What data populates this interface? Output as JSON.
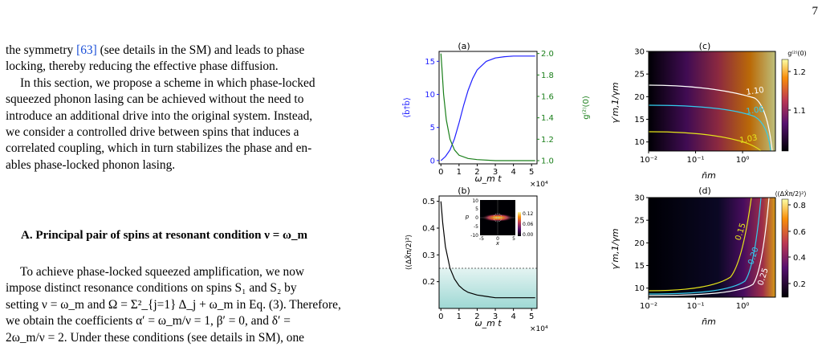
{
  "page_number": "7",
  "text": {
    "p1_l1": "the symmetry [63] (see details in the SM) and leads to phase",
    "p1_l2": "locking, thereby reducing the effective phase diffusion.",
    "p2_l1": "In this section, we propose a scheme in which phase-locked",
    "p2_l2": "squeezed phonon lasing can be achieved without the need to",
    "p2_l3": "introduce an additional drive into the original system. Instead,",
    "p2_l4": "we consider a controlled drive between spins that induces a",
    "p2_l5": "correlated coupling, which in turn stabilizes the phase and en-",
    "p2_l6": "ables phase-locked phonon lasing.",
    "section_title": "A.    Principal pair of spins at resonant condition ν = ω_m",
    "p3_l1": "To achieve phase-locked squeezed amplification, we now",
    "p3_l2": "impose distinct resonance conditions on spins S₁ and S₂ by",
    "p3_l3": "setting ν = ω_m and Ω = Σ²_{j=1} Δ_j + ω_m in Eq. (3). Therefore,",
    "p3_l4": "we obtain the coefficients α′ = ω_m/ν = 1, β′ = 0, and δ′ =",
    "p3_l5": "2ω_m/ν = 2. Under these conditions (see details in SM), one"
  },
  "figure": {
    "panel_a": {
      "label": "(a)",
      "ylabel_left": "⟨b̂†b̂⟩",
      "ylabel_right": "g⁽²⁾(0)",
      "xlabel": "ω_m t",
      "x_mult": "×10⁴",
      "x_ticks": [
        "0",
        "1",
        "2",
        "3",
        "4",
        "5"
      ],
      "yl_ticks": [
        "0",
        "5",
        "10",
        "15"
      ],
      "yr_ticks": [
        "1.0",
        "1.2",
        "1.4",
        "1.6",
        "1.8",
        "2.0"
      ]
    },
    "panel_b": {
      "label": "(b)",
      "ylabel": "⟨(ΔX̂π/2)²⟩",
      "xlabel": "ω_m t",
      "x_mult": "×10⁴",
      "x_ticks": [
        "0",
        "1",
        "2",
        "3",
        "4",
        "5"
      ],
      "y_ticks": [
        "0.2",
        "0.3",
        "0.4",
        "0.5"
      ],
      "inset": {
        "xlabel": "x",
        "ylabel": "p",
        "x_ticks": [
          "-5",
          "0",
          "5"
        ],
        "y_ticks": [
          "-10",
          "-5",
          "0",
          "5",
          "10"
        ],
        "cb_ticks": [
          "0.12",
          "0.06",
          "0.00"
        ]
      }
    },
    "panel_c": {
      "label": "(c)",
      "cb_title": "g⁽²⁾(0)",
      "ylabel": "γ′m,1/γm",
      "xlabel": "n̄m",
      "x_ticks": [
        "10⁻²",
        "10⁻¹",
        "10⁰"
      ],
      "y_ticks": [
        "10",
        "15",
        "20",
        "25",
        "30"
      ],
      "cb_ticks": [
        "1.2",
        "1.1"
      ],
      "contours": [
        "1.10",
        "1.06",
        "1.03"
      ]
    },
    "panel_d": {
      "label": "(d)",
      "cb_title": "⟨(ΔX̂π/2)²⟩",
      "ylabel": "γ′m,1/γm",
      "xlabel": "n̄m",
      "x_ticks": [
        "10⁻²",
        "10⁻¹",
        "10⁰"
      ],
      "y_ticks": [
        "10",
        "15",
        "20",
        "25",
        "30"
      ],
      "cb_ticks": [
        "0.8",
        "0.6",
        "0.4",
        "0.2"
      ],
      "contours": [
        "0.15",
        "0.20",
        "0.25"
      ]
    },
    "colors": {
      "blue": "#1f1fff",
      "green": "#1a7f1a",
      "yellow": "#e6e61a",
      "cyan": "#33ccee",
      "white": "#ffffff",
      "teal": "#9ed8d4"
    }
  },
  "chart_data": [
    {
      "type": "line",
      "title": "(a)",
      "xlabel": "ω_m t (×10⁴)",
      "series": [
        {
          "name": "⟨b̂†b̂⟩",
          "x": [
            0,
            0.25,
            0.5,
            0.75,
            1,
            1.25,
            1.5,
            1.75,
            2,
            2.5,
            3,
            3.5,
            4,
            4.5,
            5.2
          ],
          "values": [
            0,
            0.6,
            1.6,
            3.3,
            5.7,
            8.3,
            10.6,
            12.4,
            13.7,
            15.0,
            15.5,
            15.7,
            15.8,
            15.8,
            15.8
          ]
        },
        {
          "name": "g⁽²⁾(0)",
          "x": [
            0,
            0.05,
            0.15,
            0.3,
            0.5,
            0.75,
            1,
            1.5,
            2,
            3,
            4,
            5.2
          ],
          "values": [
            2.0,
            1.88,
            1.62,
            1.38,
            1.2,
            1.1,
            1.05,
            1.02,
            1.01,
            1.0,
            1.0,
            1.0
          ]
        }
      ],
      "xlim": [
        -0.1,
        5.3
      ],
      "ylim_left": [
        -0.5,
        16.5
      ],
      "ylim_right": [
        0.97,
        2.02
      ]
    },
    {
      "type": "line",
      "title": "(b)",
      "xlabel": "ω_m t (×10⁴)",
      "series": [
        {
          "name": "⟨(ΔX̂π/2)²⟩",
          "x": [
            0,
            0.1,
            0.25,
            0.5,
            0.75,
            1,
            1.25,
            1.5,
            2,
            2.5,
            3,
            4,
            5.2
          ],
          "values": [
            0.5,
            0.42,
            0.33,
            0.25,
            0.21,
            0.185,
            0.17,
            0.16,
            0.15,
            0.145,
            0.14,
            0.14,
            0.14
          ]
        }
      ],
      "xlim": [
        -0.1,
        5.3
      ],
      "ylim": [
        0.1,
        0.52
      ],
      "reference_line": 0.25
    },
    {
      "type": "heatmap",
      "title": "(c)",
      "xscale": "log",
      "xlim": [
        0.01,
        5
      ],
      "ylim": [
        8,
        30
      ],
      "colorbar_range": [
        1.0,
        1.25
      ]
    },
    {
      "type": "heatmap",
      "title": "(d)",
      "xscale": "log",
      "xlim": [
        0.01,
        5
      ],
      "ylim": [
        8,
        30
      ],
      "colorbar_range": [
        0.1,
        0.85
      ]
    }
  ]
}
